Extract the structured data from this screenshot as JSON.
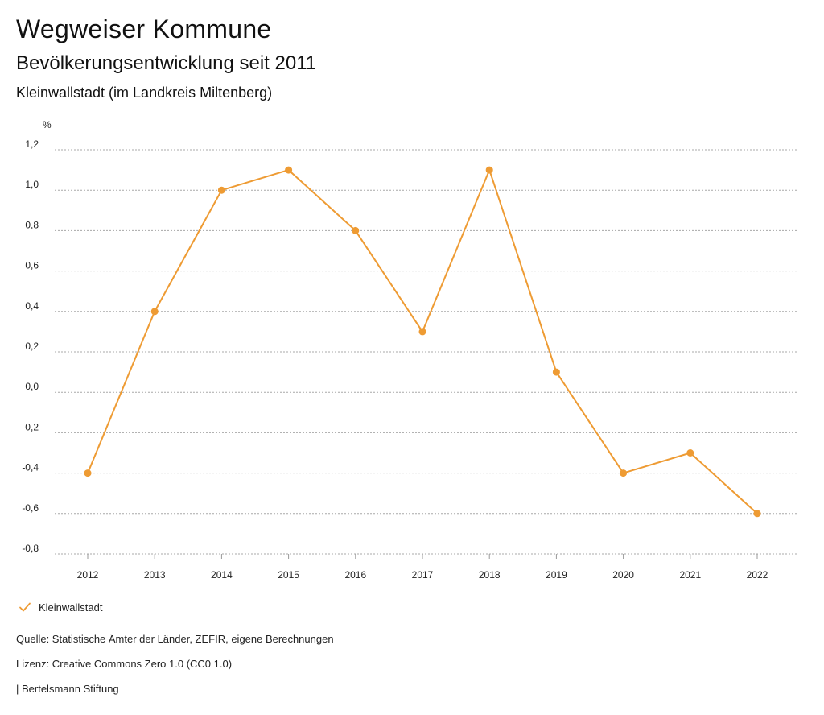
{
  "header": {
    "title": "Wegweiser Kommune",
    "subtitle": "Bevölkerungsentwicklung seit 2011",
    "region": "Kleinwallstadt (im Landkreis Miltenberg)"
  },
  "legend": {
    "label": "Kleinwallstadt"
  },
  "footer": {
    "source": "Quelle: Statistische Ämter der Länder, ZEFIR, eigene Berechnungen",
    "license": "Lizenz: Creative Commons Zero 1.0 (CC0 1.0)",
    "publisher": "| Bertelsmann Stiftung"
  },
  "colors": {
    "series": "#EE9B33",
    "grid": "#a8a8a8",
    "text": "#222222"
  },
  "chart_data": {
    "type": "line",
    "title": "Bevölkerungsentwicklung seit 2011",
    "xlabel": "",
    "ylabel": "%",
    "ylim": [
      -0.8,
      1.2
    ],
    "yticks": [
      1.2,
      1.0,
      0.8,
      0.6,
      0.4,
      0.2,
      0.0,
      -0.2,
      -0.4,
      -0.6,
      -0.8
    ],
    "ytick_labels": [
      "1,2",
      "1,0",
      "0,8",
      "0,6",
      "0,4",
      "0,2",
      "0,0",
      "-0,2",
      "-0,4",
      "-0,6",
      "-0,8"
    ],
    "categories": [
      "2012",
      "2013",
      "2014",
      "2015",
      "2016",
      "2017",
      "2018",
      "2019",
      "2020",
      "2021",
      "2022"
    ],
    "grid": true,
    "legend_position": "bottom-left",
    "series": [
      {
        "name": "Kleinwallstadt",
        "values": [
          -0.4,
          0.4,
          1.0,
          1.1,
          0.8,
          0.3,
          1.1,
          0.1,
          -0.4,
          -0.3,
          -0.6
        ]
      }
    ]
  }
}
